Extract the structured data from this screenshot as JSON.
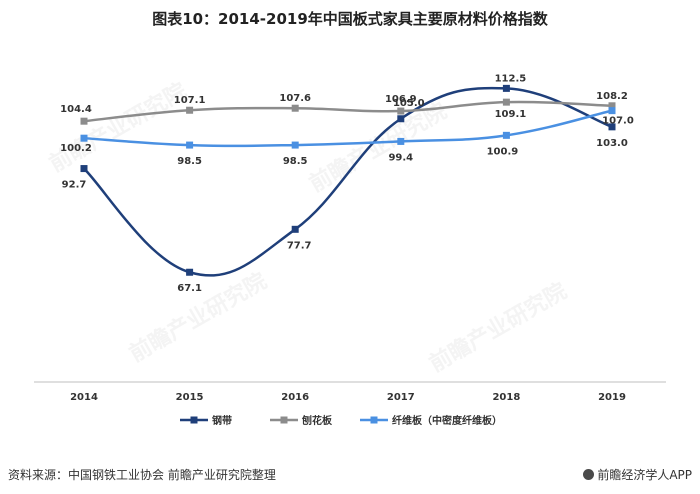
{
  "title": "图表10：2014-2019年中国板式家具主要原材料价格指数",
  "footer": {
    "source": "资料来源：中国钢铁工业协会 前瞻产业研究院整理",
    "brand": "前瞻经济学人APP"
  },
  "watermark": "前瞻产业研究院",
  "colors": {
    "steel": "#1f3f7a",
    "particleboard": "#8c8c8c",
    "fiberboard": "#4a90e2"
  },
  "chart_data": {
    "type": "line",
    "title": "图表10：2014-2019年中国板式家具主要原材料价格指数",
    "x": [
      "2014",
      "2015",
      "2016",
      "2017",
      "2018",
      "2019"
    ],
    "ylim": [
      40,
      120
    ],
    "grid": false,
    "legend_position": "bottom",
    "series": [
      {
        "name": "钢带",
        "values": [
          92.7,
          67.1,
          77.7,
          105.0,
          112.5,
          103.0
        ]
      },
      {
        "name": "刨花板",
        "values": [
          104.4,
          107.1,
          107.6,
          106.9,
          109.1,
          108.2
        ]
      },
      {
        "name": "纤维板（中密度纤维板）",
        "values": [
          100.2,
          98.5,
          98.5,
          99.4,
          100.9,
          107.0
        ]
      }
    ]
  }
}
